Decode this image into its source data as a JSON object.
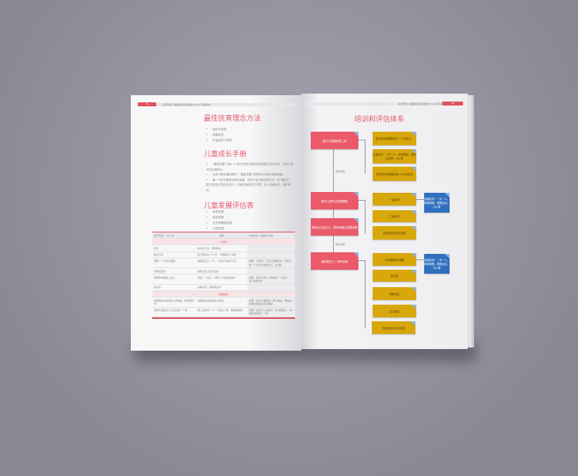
{
  "header": {
    "left_page_number": "31",
    "right_page_number": "32",
    "running_title": "慈济博爱儿童福利院年度报告 2016 年度报告"
  },
  "left": {
    "section1": {
      "title": "最佳抚育理念方法",
      "items": [
        "回应式抚育",
        "情感依恋",
        "丰富的学习环境"
      ]
    },
    "section2": {
      "title": "儿童成长手册",
      "items": [
        "“春苗花园”为每一个孩子在他们刚来的时候建立成长手册，记录下孩子的点滴成长。",
        "当孩子离开福利院时，“春苗花园”将把成长手册交给新家庭。",
        "每一个孩子都是世界的宝藏，他们不会记得这些时光，但“春苗花园”用这些记录告诉孩子，在他们最初的日子里，有人在爱他们、保护他们。"
      ]
    },
    "section3": {
      "title": "儿童发展评估表",
      "items": [
        "身体发展",
        "语言发展",
        "社交和情感发展",
        "认知发展"
      ]
    },
    "table": {
      "headers": [
        "发育阶段：1-24 月",
        "说明",
        "评估方法（观察和记录）"
      ],
      "sections": [
        {
          "title": "大运动",
          "rows": [
            [
              "抬头",
              "趴在床上时，能抬起头",
              ""
            ],
            [
              "独立行走",
              "自己能走出 5-8 步，不需要成人扶着",
              ""
            ],
            [
              "用脚一个大积木起跑",
              "向前走至少 5 步，大积木不会掉下来",
              "如果：大积木，让孩子看看积木，把孩子的一个大积木放在地上，说“踢”"
            ],
            [
              "用笔画直线",
              "用笔在纸上画出直线",
              ""
            ],
            [
              "把两件物品放入盒子",
              "拿起一个盒子，将两个小物品放进去",
              "如果：给孩子两个小物品和一个盒子，说“请放进去”"
            ],
            [
              "爬台阶",
              "扶着栏杆，能够爬台阶",
              ""
            ]
          ]
        },
        {
          "title": "精细运动",
          "rows": [
            [
              "用拇指和食指捏起小的物品（例如葡萄干）",
              "用拇指和食指捏起小物品",
              "如果：在孩子面前放一颗小物品，看他是否能用拇指和食指捏起"
            ],
            [
              "用积木搭起至少三层高的一个塔",
              "用三块积木一个一个放在一起，能够搭起塔",
              "如果：给孩子三块积木，说“搭起来”，看他能否搭起一个塔"
            ]
          ]
        }
      ]
    }
  },
  "right": {
    "title": "培训和评估体系",
    "red_boxes": [
      "慈济儿童福利院工作",
      "慈济儿童专业发展团队",
      "现状走访出生儿，透析和确认发展问题",
      "福利院员工 / 养育老师"
    ],
    "connector_labels": [
      "培训对接",
      "培训对接"
    ],
    "group1": [
      "慈济总内部课程培训（一年两次）",
      "远程培训：一对一人，网络课程，视频会议等，QQ 群",
      "慈济总内部课程培训 & 学术交流"
    ],
    "group2": [
      "一级培训",
      "二级培训",
      "定期总结评估与指导"
    ],
    "group3": [
      "示范课程游戏课程",
      "家访组",
      "观察评估",
      "定点指导",
      "定期总结评估与指导"
    ],
    "blue_boxes": [
      "远程培训：一对一人，网络课程，视频会议，QQ 群",
      "远程培训：一对一人，网络课程，视频会议，QQ 群"
    ],
    "colors": {
      "red": "#ea5a6a",
      "yellow": "#d8a70c",
      "blue": "#2f6fbf",
      "heading": "#e45b6a"
    }
  }
}
